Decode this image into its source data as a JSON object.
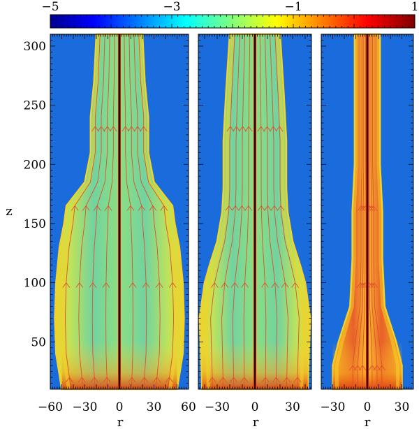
{
  "chart_data": {
    "type": "heatmap",
    "colorbar": {
      "range": [
        -5,
        1
      ],
      "ticks": [
        -5,
        -3,
        -1,
        1
      ],
      "tick_labels": [
        "−5",
        "−3",
        "−1",
        "1"
      ],
      "colormap": "jet",
      "stops": [
        "#00008f",
        "#0000ff",
        "#00ffff",
        "#ffff00",
        "#ff0000",
        "#800000"
      ]
    },
    "ylabel": "z",
    "yticks": [
      50,
      100,
      150,
      200,
      250,
      300
    ],
    "ylim": [
      10,
      310
    ],
    "colors": {
      "background": "#1a6cdc",
      "jet_body": "#6fdc78",
      "jet_edge": "#f4d226",
      "axis_line": "#000000",
      "field_line": "#e0502a",
      "shear_spine": "#d41f10"
    },
    "panels": [
      {
        "xlabel": "r",
        "xlim": [
          -60,
          60
        ],
        "xticks": [
          -60,
          -30,
          0,
          30,
          60
        ],
        "xtick_labels": [
          "−60",
          "−30",
          "0",
          "30",
          "60"
        ],
        "jet_profile": {
          "z": [
            10,
            40,
            70,
            100,
            130,
            150,
            165,
            185,
            210,
            240,
            270,
            310
          ],
          "half_width": [
            50,
            55,
            56,
            55,
            52,
            48,
            46,
            30,
            25,
            25,
            22,
            20
          ]
        },
        "field_line_radii": [
          10,
          20,
          30,
          40
        ],
        "arrow_heights": [
          20,
          100,
          165,
          232
        ]
      },
      {
        "xlabel": "r",
        "xlim": [
          -45,
          45
        ],
        "xticks": [
          -30,
          0,
          30
        ],
        "xtick_labels": [
          "−30",
          "0",
          "30"
        ],
        "jet_profile": {
          "z": [
            10,
            40,
            70,
            100,
            115,
            135,
            160,
            180,
            220,
            260,
            310
          ],
          "half_width": [
            42,
            43,
            44,
            40,
            36,
            30,
            26,
            25,
            25,
            23,
            20
          ]
        },
        "field_line_radii": [
          8,
          16,
          24,
          32
        ],
        "arrow_heights": [
          20,
          100,
          165,
          232
        ]
      },
      {
        "xlabel": "r",
        "xlim": [
          -40,
          40
        ],
        "xticks": [
          -30,
          0,
          30
        ],
        "xtick_labels": [
          "−30",
          "0",
          "30"
        ],
        "jet_profile": {
          "z": [
            10,
            30,
            50,
            65,
            80,
            120,
            160,
            200,
            250,
            310
          ],
          "half_width": [
            30,
            30,
            25,
            20,
            15,
            13,
            13,
            11,
            11,
            11
          ]
        },
        "field_line_radii": [
          4,
          8,
          12
        ],
        "arrow_heights": [
          30,
          100,
          165
        ]
      }
    ]
  }
}
